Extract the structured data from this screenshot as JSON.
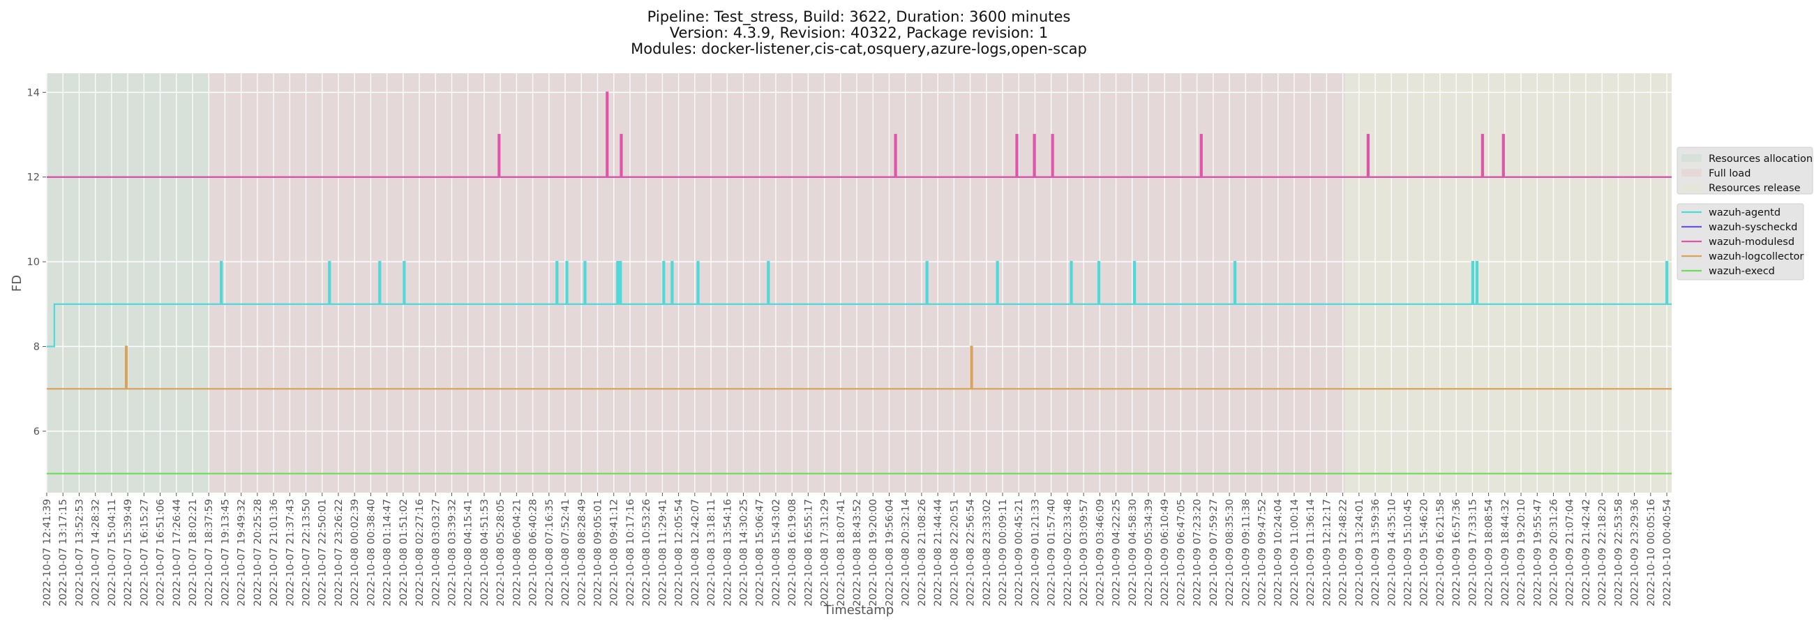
{
  "chart_data": {
    "type": "line",
    "title_lines": [
      "Pipeline: Test_stress, Build: 3622, Duration: 3600 minutes",
      "Version: 4.3.9, Revision: 40322, Package revision: 1",
      "Modules: docker-listener,cis-cat,osquery,azure-logs,open-scap"
    ],
    "xlabel": "Timestamp",
    "ylabel": "FD",
    "ylim": [
      4.55,
      14.45
    ],
    "xlim": [
      0,
      100.3
    ],
    "yticks": [
      6,
      8,
      10,
      12,
      14
    ],
    "grid": true,
    "x_note": "x values expressed in tick-index units (tick i = x_tick_labels[i])",
    "x_tick_labels": [
      "2022-10-07 12:41:39",
      "2022-10-07 13:17:15",
      "2022-10-07 13:52:53",
      "2022-10-07 14:28:32",
      "2022-10-07 15:04:11",
      "2022-10-07 15:39:49",
      "2022-10-07 16:15:27",
      "2022-10-07 16:51:06",
      "2022-10-07 17:26:44",
      "2022-10-07 18:02:21",
      "2022-10-07 18:37:59",
      "2022-10-07 19:13:45",
      "2022-10-07 19:49:32",
      "2022-10-07 20:25:28",
      "2022-10-07 21:01:36",
      "2022-10-07 21:37:43",
      "2022-10-07 22:13:50",
      "2022-10-07 22:50:01",
      "2022-10-07 23:26:22",
      "2022-10-08 00:02:39",
      "2022-10-08 00:38:40",
      "2022-10-08 01:14:47",
      "2022-10-08 01:51:02",
      "2022-10-08 02:27:16",
      "2022-10-08 03:03:27",
      "2022-10-08 03:39:32",
      "2022-10-08 04:15:41",
      "2022-10-08 04:51:53",
      "2022-10-08 05:28:05",
      "2022-10-08 06:04:21",
      "2022-10-08 06:40:28",
      "2022-10-08 07:16:35",
      "2022-10-08 07:52:41",
      "2022-10-08 08:28:49",
      "2022-10-08 09:05:01",
      "2022-10-08 09:41:12",
      "2022-10-08 10:17:16",
      "2022-10-08 10:53:26",
      "2022-10-08 11:29:41",
      "2022-10-08 12:05:54",
      "2022-10-08 12:42:07",
      "2022-10-08 13:18:11",
      "2022-10-08 13:54:16",
      "2022-10-08 14:30:25",
      "2022-10-08 15:06:47",
      "2022-10-08 15:43:02",
      "2022-10-08 16:19:08",
      "2022-10-08 16:55:17",
      "2022-10-08 17:31:29",
      "2022-10-08 18:07:41",
      "2022-10-08 18:43:52",
      "2022-10-08 19:20:00",
      "2022-10-08 19:56:04",
      "2022-10-08 20:32:14",
      "2022-10-08 21:08:26",
      "2022-10-08 21:44:44",
      "2022-10-08 22:20:51",
      "2022-10-08 22:56:54",
      "2022-10-08 23:33:02",
      "2022-10-09 00:09:11",
      "2022-10-09 00:45:21",
      "2022-10-09 01:21:33",
      "2022-10-09 01:57:40",
      "2022-10-09 02:33:48",
      "2022-10-09 03:09:57",
      "2022-10-09 03:46:09",
      "2022-10-09 04:22:25",
      "2022-10-09 04:58:30",
      "2022-10-09 05:34:39",
      "2022-10-09 06:10:49",
      "2022-10-09 06:47:05",
      "2022-10-09 07:23:20",
      "2022-10-09 07:59:27",
      "2022-10-09 08:35:30",
      "2022-10-09 09:11:38",
      "2022-10-09 09:47:52",
      "2022-10-09 10:24:04",
      "2022-10-09 11:00:14",
      "2022-10-09 11:36:14",
      "2022-10-09 12:12:17",
      "2022-10-09 12:48:22",
      "2022-10-09 13:24:01",
      "2022-10-09 13:59:36",
      "2022-10-09 14:35:10",
      "2022-10-09 15:10:45",
      "2022-10-09 15:46:20",
      "2022-10-09 16:21:58",
      "2022-10-09 16:57:36",
      "2022-10-09 17:33:15",
      "2022-10-09 18:08:54",
      "2022-10-09 18:44:32",
      "2022-10-09 19:20:10",
      "2022-10-09 19:55:47",
      "2022-10-09 20:31:26",
      "2022-10-09 21:07:04",
      "2022-10-09 21:42:42",
      "2022-10-09 22:18:20",
      "2022-10-09 22:53:58",
      "2022-10-09 23:29:36",
      "2022-10-10 00:05:16",
      "2022-10-10 00:40:54"
    ],
    "regions": [
      {
        "name": "Resources allocation",
        "start": 0,
        "end": 10.04,
        "color": "#d8e0da"
      },
      {
        "name": "Full load",
        "start": 10.04,
        "end": 80.14,
        "color": "#e4d8d9"
      },
      {
        "name": "Resources release",
        "start": 80.14,
        "end": 100.3,
        "color": "#e5e5d9"
      }
    ],
    "series": [
      {
        "name": "wazuh-agentd",
        "color": "#4fd9d9",
        "steps": [
          [
            0,
            8
          ],
          [
            0.47,
            9
          ]
        ],
        "spikes": [
          [
            10.73,
            10
          ],
          [
            17.41,
            10
          ],
          [
            20.51,
            10
          ],
          [
            22.02,
            10
          ],
          [
            31.45,
            10
          ],
          [
            32.06,
            10
          ],
          [
            33.18,
            10
          ],
          [
            35.2,
            10
          ],
          [
            35.37,
            10
          ],
          [
            38.04,
            10
          ],
          [
            38.56,
            10
          ],
          [
            40.16,
            10
          ],
          [
            44.5,
            10
          ],
          [
            54.29,
            10
          ],
          [
            58.64,
            10
          ],
          [
            63.2,
            10
          ],
          [
            64.9,
            10
          ],
          [
            67.1,
            10
          ],
          [
            73.3,
            10
          ],
          [
            87.98,
            10
          ],
          [
            88.24,
            10
          ],
          [
            99.96,
            10
          ]
        ]
      },
      {
        "name": "wazuh-syscheckd",
        "color": "#6a55e0",
        "steps": [
          [
            0,
            12
          ]
        ],
        "spikes": []
      },
      {
        "name": "wazuh-modulesd",
        "color": "#e055a8",
        "steps": [
          [
            0,
            12
          ]
        ],
        "spikes": [
          [
            27.88,
            13
          ],
          [
            34.55,
            14
          ],
          [
            35.42,
            13
          ],
          [
            52.35,
            13
          ],
          [
            59.84,
            13
          ],
          [
            60.92,
            13
          ],
          [
            62.04,
            13
          ],
          [
            71.22,
            13
          ],
          [
            81.52,
            13
          ],
          [
            88.58,
            13
          ],
          [
            89.87,
            13
          ]
        ]
      },
      {
        "name": "wazuh-logcollector",
        "color": "#d9a35c",
        "steps": [
          [
            0,
            7
          ]
        ],
        "spikes": [
          [
            4.87,
            8
          ],
          [
            57.04,
            8
          ]
        ]
      },
      {
        "name": "wazuh-execd",
        "color": "#6cdc5a",
        "steps": [
          [
            0,
            5
          ]
        ],
        "spikes": []
      }
    ],
    "legend_placement": "right"
  }
}
